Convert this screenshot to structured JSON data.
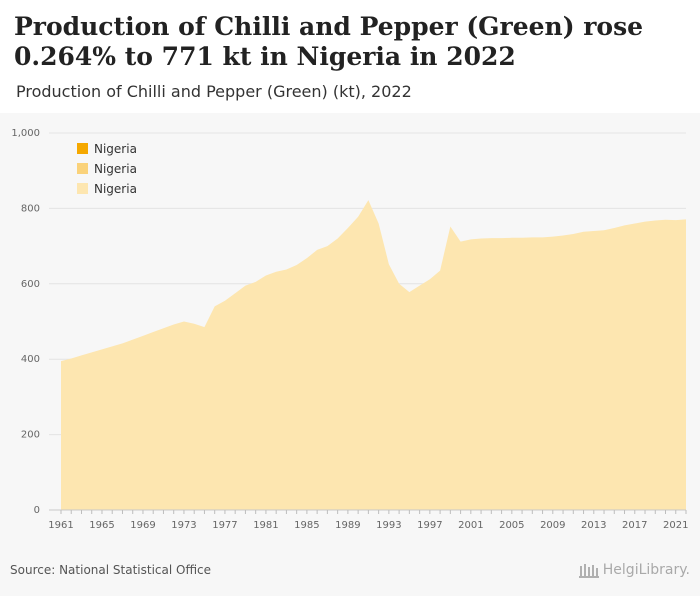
{
  "header": {
    "title": "Production of Chilli and Pepper (Green) rose 0.264% to 771 kt in Nigeria in 2022",
    "subtitle": "Production of Chilli and Pepper (Green) (kt), 2022"
  },
  "footer": {
    "source": "Source: National Statistical Office",
    "brand": "HelgiLibrary."
  },
  "colors": {
    "area": "#fde6b0",
    "legend": [
      "#f5a800",
      "#fad27a",
      "#fde6b0"
    ],
    "panel": "#f7f7f7",
    "grid": "#e4e4e4"
  },
  "chart_data": {
    "type": "area",
    "title": "Production of Chilli and Pepper (Green) (kt), 2022",
    "xlabel": "",
    "ylabel": "",
    "ylim": [
      0,
      1000
    ],
    "yticks": [
      0,
      200,
      400,
      600,
      800,
      1000
    ],
    "ytick_labels": [
      "0",
      "200",
      "400",
      "600",
      "800",
      "1,000"
    ],
    "xticks": [
      1961,
      1965,
      1969,
      1973,
      1977,
      1981,
      1985,
      1989,
      1993,
      1997,
      2001,
      2005,
      2009,
      2013,
      2017,
      2021
    ],
    "grid": true,
    "legend_position": "top-left",
    "legend": [
      "Nigeria",
      "Nigeria",
      "Nigeria"
    ],
    "x": [
      1961,
      1962,
      1963,
      1964,
      1965,
      1966,
      1967,
      1968,
      1969,
      1970,
      1971,
      1972,
      1973,
      1974,
      1975,
      1976,
      1977,
      1978,
      1979,
      1980,
      1981,
      1982,
      1983,
      1984,
      1985,
      1986,
      1987,
      1988,
      1989,
      1990,
      1991,
      1992,
      1993,
      1994,
      1995,
      1996,
      1997,
      1998,
      1999,
      2000,
      2001,
      2002,
      2003,
      2004,
      2005,
      2006,
      2007,
      2008,
      2009,
      2010,
      2011,
      2012,
      2013,
      2014,
      2015,
      2016,
      2017,
      2018,
      2019,
      2020,
      2021,
      2022
    ],
    "series": [
      {
        "name": "Nigeria",
        "values": [
          395,
          402,
          410,
          418,
          426,
          434,
          442,
          452,
          462,
          472,
          482,
          492,
          500,
          494,
          485,
          540,
          555,
          575,
          595,
          605,
          622,
          632,
          638,
          650,
          668,
          690,
          700,
          720,
          748,
          778,
          822,
          760,
          652,
          600,
          578,
          595,
          612,
          635,
          752,
          712,
          718,
          720,
          721,
          721,
          722,
          722,
          723,
          723,
          725,
          728,
          732,
          738,
          740,
          742,
          748,
          755,
          760,
          765,
          768,
          770,
          769,
          771
        ]
      }
    ]
  }
}
